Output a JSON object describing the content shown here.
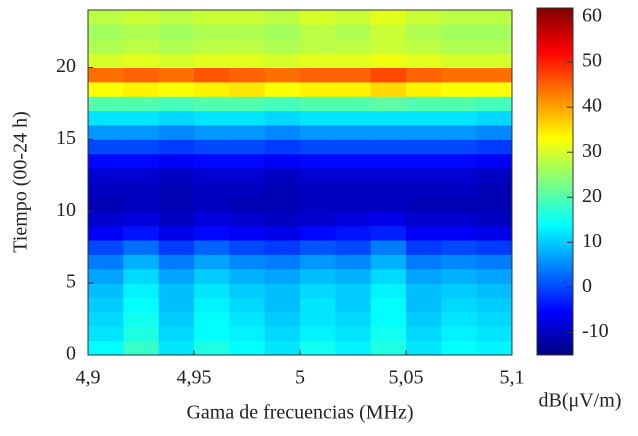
{
  "chart_data": {
    "type": "heatmap",
    "xlabel": "Gama de frecuencias (MHz)",
    "ylabel": "Tiempo (00-24 h)",
    "colorbar_label": "dB(μV/m)",
    "colormap": "jet",
    "xlim": [
      4.9,
      5.1
    ],
    "xticks": [
      {
        "value": 4.9,
        "label": "4,9"
      },
      {
        "value": 4.95,
        "label": "4,95"
      },
      5,
      {
        "value": 5.05,
        "label": "5,05"
      },
      {
        "value": 5.1,
        "label": "5,1"
      }
    ],
    "ylim": [
      0,
      24
    ],
    "yticks": [
      0,
      5,
      10,
      15,
      20
    ],
    "clim": [
      -15,
      62
    ],
    "cticks": [
      -10,
      0,
      10,
      20,
      30,
      40,
      50,
      60
    ],
    "z": [
      [
        14,
        18,
        12,
        16,
        14,
        12,
        15,
        13,
        16,
        12,
        14,
        13
      ],
      [
        12,
        16,
        11,
        14,
        13,
        11,
        13,
        12,
        15,
        11,
        13,
        12
      ],
      [
        11,
        15,
        10,
        14,
        12,
        10,
        12,
        11,
        14,
        10,
        12,
        11
      ],
      [
        10,
        14,
        9,
        13,
        11,
        9,
        12,
        10,
        14,
        9,
        11,
        10
      ],
      [
        9,
        13,
        9,
        12,
        10,
        9,
        11,
        10,
        13,
        9,
        10,
        9
      ],
      [
        7,
        11,
        7,
        10,
        8,
        7,
        9,
        8,
        11,
        7,
        8,
        7
      ],
      [
        4,
        8,
        4,
        7,
        5,
        4,
        6,
        5,
        8,
        4,
        5,
        4
      ],
      [
        0,
        3,
        -1,
        2,
        0,
        -1,
        1,
        0,
        4,
        -1,
        0,
        -1
      ],
      [
        -6,
        -4,
        -7,
        -5,
        -6,
        -7,
        -5,
        -4,
        -3,
        -6,
        -6,
        -7
      ],
      [
        -9,
        -8,
        -10,
        -8,
        -9,
        -10,
        -9,
        -8,
        -7,
        -9,
        -9,
        -10
      ],
      [
        -11,
        -10,
        -11,
        -10,
        -11,
        -11,
        -10,
        -10,
        -10,
        -11,
        -11,
        -11
      ],
      [
        -10,
        -10,
        -11,
        -10,
        -10,
        -11,
        -10,
        -10,
        -10,
        -10,
        -10,
        -11
      ],
      [
        -9,
        -9,
        -10,
        -9,
        -9,
        -10,
        -9,
        -9,
        -9,
        -9,
        -9,
        -10
      ],
      [
        -5,
        -5,
        -6,
        -5,
        -5,
        -6,
        -5,
        -5,
        -5,
        -5,
        -5,
        -6
      ],
      [
        0,
        0,
        -1,
        0,
        0,
        -1,
        0,
        0,
        0,
        0,
        0,
        -1
      ],
      [
        6,
        6,
        5,
        6,
        6,
        5,
        6,
        6,
        6,
        6,
        6,
        5
      ],
      [
        12,
        12,
        11,
        12,
        12,
        11,
        12,
        12,
        12,
        12,
        12,
        11
      ],
      [
        20,
        20,
        19,
        20,
        20,
        19,
        20,
        20,
        21,
        20,
        20,
        19
      ],
      [
        33,
        34,
        33,
        34,
        35,
        33,
        34,
        34,
        36,
        34,
        33,
        33
      ],
      [
        44,
        45,
        44,
        46,
        45,
        44,
        45,
        45,
        47,
        45,
        44,
        44
      ],
      [
        30,
        31,
        30,
        31,
        31,
        30,
        31,
        31,
        32,
        31,
        30,
        30
      ],
      [
        27,
        28,
        27,
        28,
        28,
        27,
        28,
        28,
        29,
        28,
        27,
        27
      ],
      [
        26,
        27,
        26,
        27,
        27,
        26,
        28,
        27,
        29,
        27,
        26,
        26
      ],
      [
        28,
        29,
        28,
        29,
        29,
        28,
        30,
        29,
        31,
        29,
        28,
        28
      ]
    ]
  }
}
